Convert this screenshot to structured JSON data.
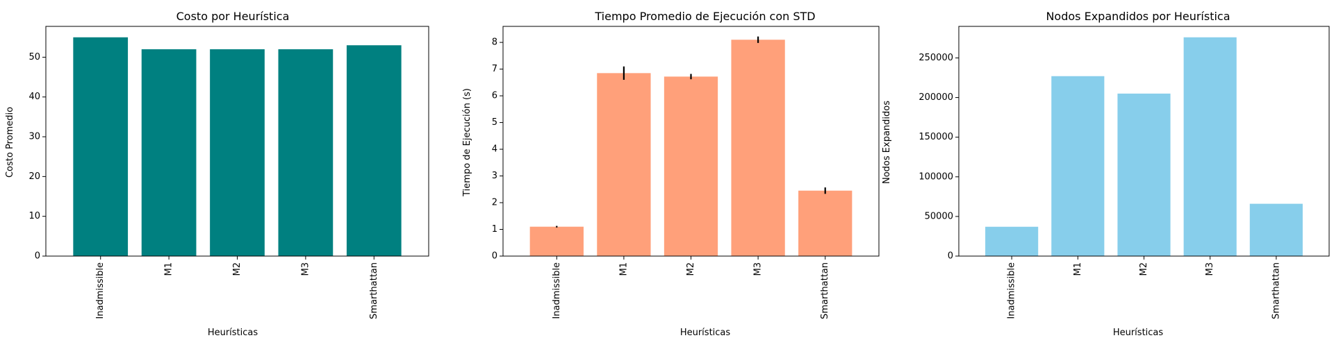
{
  "chart_data": [
    {
      "type": "bar",
      "title": "Costo por Heurística",
      "xlabel": "Heurísticas",
      "ylabel": "Costo Promedio",
      "categories": [
        "Inadmissible",
        "M1",
        "M2",
        "M3",
        "Smarthattan"
      ],
      "values": [
        55,
        52,
        52,
        52,
        53
      ],
      "ylim": [
        0,
        57.75
      ],
      "yticks": [
        0,
        10,
        20,
        30,
        40,
        50
      ],
      "ytick_labels": [
        "0",
        "10",
        "20",
        "30",
        "40",
        "50"
      ],
      "color": "#008080",
      "grid": false,
      "legend": "none"
    },
    {
      "type": "bar",
      "title": "Tiempo Promedio de Ejecución con STD",
      "xlabel": "Heurísticas",
      "ylabel": "Tiempo de Ejecución (s)",
      "categories": [
        "Inadmissible",
        "M1",
        "M2",
        "M3",
        "Smarthattan"
      ],
      "values": [
        1.1,
        6.85,
        6.72,
        8.1,
        2.45
      ],
      "errors": [
        0.03,
        0.25,
        0.1,
        0.12,
        0.12
      ],
      "ylim": [
        0,
        8.6
      ],
      "yticks": [
        0,
        1,
        2,
        3,
        4,
        5,
        6,
        7,
        8
      ],
      "ytick_labels": [
        "0",
        "1",
        "2",
        "3",
        "4",
        "5",
        "6",
        "7",
        "8"
      ],
      "color": "#FFA07A",
      "error_color": "#000000",
      "grid": false,
      "legend": "none"
    },
    {
      "type": "bar",
      "title": "Nodos Expandidos por Heurística",
      "xlabel": "Heurísticas",
      "ylabel": "Nodos Expandidos",
      "categories": [
        "Inadmissible",
        "M1",
        "M2",
        "M3",
        "Smarthattan"
      ],
      "values": [
        37000,
        227000,
        205000,
        276000,
        66000
      ],
      "ylim": [
        0,
        289800
      ],
      "yticks": [
        0,
        50000,
        100000,
        150000,
        200000,
        250000
      ],
      "ytick_labels": [
        "0",
        "50000",
        "100000",
        "150000",
        "200000",
        "250000"
      ],
      "color": "#87CEEB",
      "grid": false,
      "legend": "none"
    }
  ]
}
